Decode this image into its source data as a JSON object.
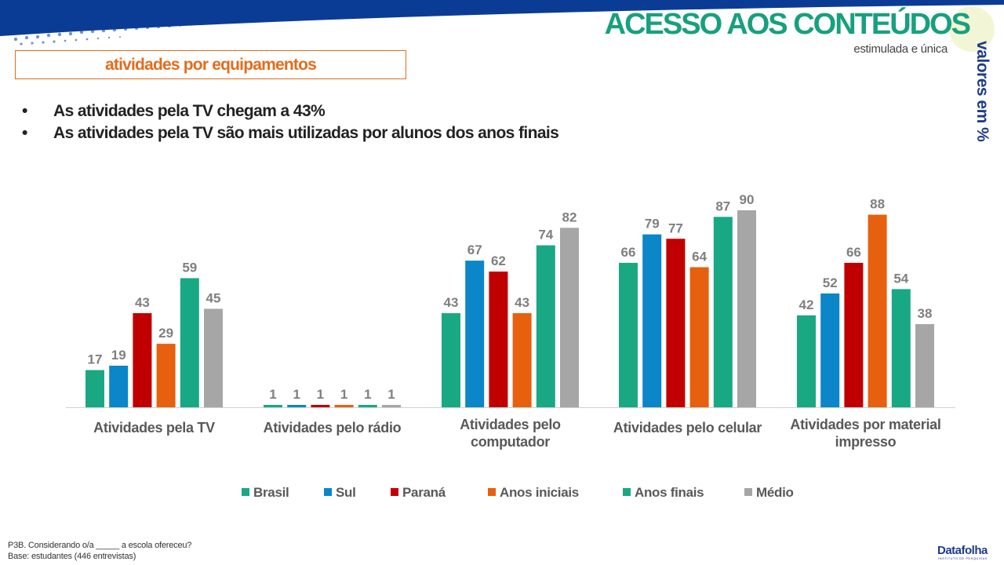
{
  "header": {
    "title": "ACESSO AOS CONTEÚDOS",
    "subtitle": "estimulada e única",
    "units_note": "valores em %",
    "section_label": "atividades por equipamentos"
  },
  "bullets": [
    "As atividades pela TV chegam a 43%",
    "As atividades pela TV são mais utilizadas por alunos dos anos finais"
  ],
  "footer": {
    "question": "P3B. Considerando o/a _____ a escola ofereceu?",
    "base": "Base: estudantes (446 entrevistas)",
    "logo": "Datafolha",
    "logo_sub": "INSTITUTO DE PESQUISAS"
  },
  "chart_data": {
    "type": "bar",
    "categories": [
      [
        "Atividades pela TV"
      ],
      [
        "Atividades pelo rádio"
      ],
      [
        "Atividades pelo",
        "computador"
      ],
      [
        "Atividades pelo celular"
      ],
      [
        "Atividades por material",
        "impresso"
      ]
    ],
    "series": [
      {
        "name": "Brasil",
        "color": "#1aa883",
        "values": [
          17,
          1,
          43,
          66,
          42
        ]
      },
      {
        "name": "Sul",
        "color": "#0a86c9",
        "values": [
          19,
          1,
          67,
          79,
          52
        ]
      },
      {
        "name": "Paraná",
        "color": "#c00000",
        "values": [
          43,
          1,
          62,
          77,
          66
        ]
      },
      {
        "name": "Anos iniciais",
        "color": "#e6600e",
        "values": [
          29,
          1,
          43,
          64,
          88
        ]
      },
      {
        "name": "Anos finais",
        "color": "#19a884",
        "values": [
          59,
          1,
          74,
          87,
          54
        ]
      },
      {
        "name": "Médio",
        "color": "#a6a6a6",
        "values": [
          45,
          1,
          82,
          90,
          38
        ]
      }
    ],
    "ylim": [
      0,
      90
    ],
    "legend_position": "bottom",
    "grid": false
  }
}
